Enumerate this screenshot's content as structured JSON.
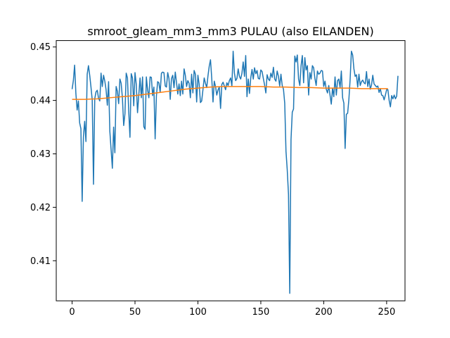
{
  "chart_data": {
    "type": "line",
    "title": "smroot_gleam_mm3_mm3 PULAU (also EILANDEN)",
    "xlabel": "",
    "ylabel": "",
    "xlim": [
      -12.6,
      264.6
    ],
    "ylim": [
      0.4025,
      0.4512
    ],
    "x_ticks": [
      0,
      50,
      100,
      150,
      200,
      250
    ],
    "x_tick_labels": [
      "0",
      "50",
      "100",
      "150",
      "200",
      "250"
    ],
    "y_ticks": [
      0.41,
      0.42,
      0.43,
      0.44,
      0.45
    ],
    "y_tick_labels": [
      "0.41",
      "0.42",
      "0.43",
      "0.44",
      "0.45"
    ],
    "grid": false,
    "legend": "none",
    "series": [
      {
        "color": "#1f77b4",
        "x_start": 0,
        "x_step": 1,
        "values": [
          0.4421,
          0.4437,
          0.4466,
          0.4413,
          0.4382,
          0.4399,
          0.4358,
          0.4347,
          0.4211,
          0.4332,
          0.4361,
          0.4323,
          0.4449,
          0.4465,
          0.4447,
          0.4425,
          0.4401,
          0.4243,
          0.4403,
          0.4416,
          0.4419,
          0.4404,
          0.4399,
          0.4451,
          0.4426,
          0.4447,
          0.4436,
          0.442,
          0.4391,
          0.4435,
          0.4342,
          0.4308,
          0.4273,
          0.435,
          0.4302,
          0.4426,
          0.4417,
          0.4394,
          0.444,
          0.4432,
          0.4404,
          0.4353,
          0.4375,
          0.4451,
          0.4442,
          0.438,
          0.4331,
          0.445,
          0.4442,
          0.439,
          0.4452,
          0.443,
          0.4377,
          0.441,
          0.4442,
          0.4405,
          0.4444,
          0.4351,
          0.4346,
          0.4444,
          0.442,
          0.4405,
          0.4444,
          0.4443,
          0.4409,
          0.4425,
          0.4328,
          0.4408,
          0.4435,
          0.4433,
          0.4415,
          0.4451,
          0.4453,
          0.4452,
          0.4427,
          0.4425,
          0.4452,
          0.4441,
          0.4402,
          0.4441,
          0.4447,
          0.4424,
          0.4453,
          0.4433,
          0.4412,
          0.4431,
          0.4409,
          0.4436,
          0.4412,
          0.4459,
          0.4447,
          0.4426,
          0.4437,
          0.4432,
          0.4405,
          0.4449,
          0.4414,
          0.4456,
          0.4449,
          0.4397,
          0.4447,
          0.443,
          0.4396,
          0.4399,
          0.442,
          0.4442,
          0.4432,
          0.4424,
          0.4446,
          0.4464,
          0.4476,
          0.4441,
          0.4397,
          0.4436,
          0.4426,
          0.441,
          0.442,
          0.4425,
          0.4385,
          0.443,
          0.4434,
          0.4427,
          0.442,
          0.4433,
          0.4428,
          0.4437,
          0.4442,
          0.4427,
          0.4492,
          0.4451,
          0.4437,
          0.4441,
          0.4459,
          0.4445,
          0.444,
          0.4451,
          0.4472,
          0.4445,
          0.4484,
          0.4407,
          0.444,
          0.4413,
          0.4442,
          0.4458,
          0.444,
          0.4461,
          0.445,
          0.4456,
          0.4441,
          0.444,
          0.4457,
          0.4454,
          0.4441,
          0.4429,
          0.4414,
          0.4448,
          0.444,
          0.4437,
          0.4451,
          0.4443,
          0.4462,
          0.444,
          0.4436,
          0.4455,
          0.4445,
          0.4427,
          0.4449,
          0.4428,
          0.4421,
          0.4395,
          0.4305,
          0.427,
          0.4224,
          0.4039,
          0.4327,
          0.4378,
          0.4384,
          0.4483,
          0.4472,
          0.4485,
          0.444,
          0.4428,
          0.4465,
          0.4484,
          0.4433,
          0.448,
          0.4457,
          0.4465,
          0.441,
          0.4452,
          0.444,
          0.4465,
          0.4461,
          0.4441,
          0.4428,
          0.4455,
          0.4449,
          0.4451,
          0.4456,
          0.4455,
          0.4426,
          0.4436,
          0.4421,
          0.4414,
          0.4428,
          0.441,
          0.4393,
          0.4423,
          0.4407,
          0.4444,
          0.441,
          0.4437,
          0.444,
          0.4424,
          0.4455,
          0.4405,
          0.4395,
          0.431,
          0.4374,
          0.4376,
          0.4402,
          0.444,
          0.4492,
          0.4485,
          0.4459,
          0.4445,
          0.4448,
          0.4425,
          0.4449,
          0.4428,
          0.4435,
          0.4438,
          0.4433,
          0.4431,
          0.4454,
          0.4426,
          0.444,
          0.4421,
          0.4429,
          0.4447,
          0.4431,
          0.4428,
          0.4425,
          0.4427,
          0.4415,
          0.4422,
          0.441,
          0.4409,
          0.4401,
          0.441,
          0.442,
          0.442,
          0.44,
          0.4388,
          0.4409,
          0.4403,
          0.441,
          0.4403,
          0.4408,
          0.4446
        ]
      },
      {
        "color": "#ff7f0e",
        "x": [
          0,
          10,
          20,
          30,
          40,
          50,
          60,
          70,
          80,
          90,
          100,
          110,
          120,
          130,
          140,
          150,
          160,
          170,
          180,
          190,
          200,
          210,
          220,
          230,
          240,
          251
        ],
        "values": [
          0.4402,
          0.4402,
          0.4403,
          0.4405,
          0.4407,
          0.4409,
          0.4412,
          0.4415,
          0.4418,
          0.4421,
          0.4423,
          0.4425,
          0.4426,
          0.4426,
          0.4426,
          0.4426,
          0.4425,
          0.4425,
          0.4424,
          0.4424,
          0.4423,
          0.4423,
          0.4423,
          0.4422,
          0.4422,
          0.4422
        ]
      }
    ]
  }
}
